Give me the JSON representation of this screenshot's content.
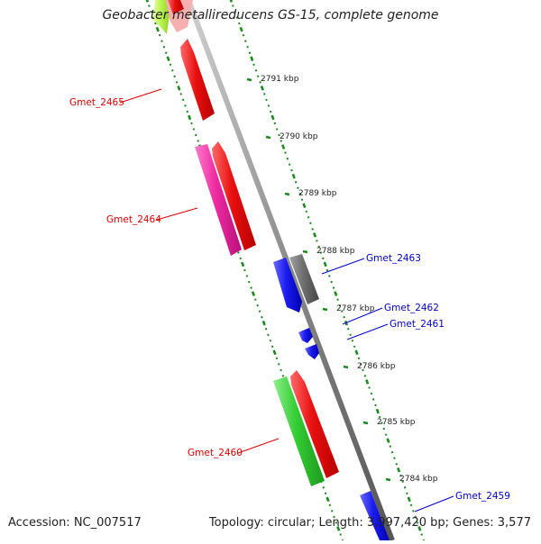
{
  "title": "Geobacter metallireducens GS-15, complete genome",
  "footer": {
    "accession": "Accession: NC_007517",
    "topology": "Topology: circular; Length: 3,997,420 bp; Genes: 3,577"
  },
  "colors": {
    "forward_gene": "#e81010",
    "forward_label": "#dd0000",
    "reverse_gene": "#1b1bf0",
    "reverse_label": "#0000cc",
    "pseudogene": "#707070",
    "rna_gene": "#33cc33",
    "pink_gene": "#ee2aa0",
    "lime_gene": "#aaee33",
    "backbone": "#8a8a8a",
    "ticks": "#1a8a1a"
  },
  "scale": {
    "unit": "kbp",
    "ticks": [
      "2791 kbp",
      "2790 kbp",
      "2789 kbp",
      "2788 kbp",
      "2787 kbp",
      "2786 kbp",
      "2785 kbp",
      "2784 kbp"
    ]
  },
  "genes": [
    {
      "label": "Gmet_2465",
      "strand": "+",
      "color": "forward_gene"
    },
    {
      "label": "Gmet_2464",
      "strand": "+",
      "color": "pink_gene"
    },
    {
      "label": "Gmet_2463",
      "strand": "-",
      "color": "reverse_gene"
    },
    {
      "label": "Gmet_2462",
      "strand": "-",
      "color": "reverse_gene"
    },
    {
      "label": "Gmet_2461",
      "strand": "-",
      "color": "reverse_gene"
    },
    {
      "label": "Gmet_2460",
      "strand": "+",
      "color": "rna_gene"
    },
    {
      "label": "Gmet_2459",
      "strand": "-",
      "color": "reverse_gene"
    }
  ]
}
